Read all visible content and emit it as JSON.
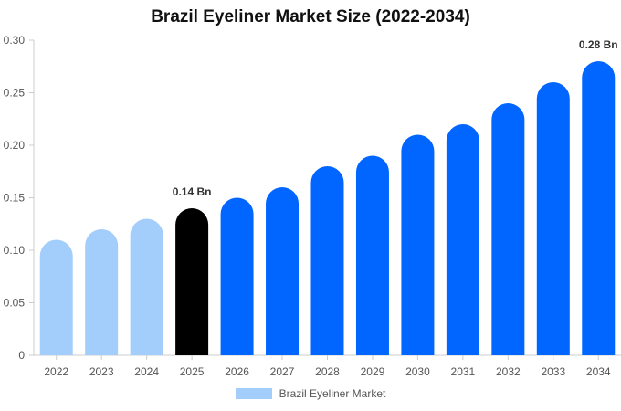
{
  "chart_data": {
    "type": "bar",
    "title": "Brazil Eyeliner Market Size (2022-2034)",
    "categories": [
      "2022",
      "2023",
      "2024",
      "2025",
      "2026",
      "2027",
      "2028",
      "2029",
      "2030",
      "2031",
      "2032",
      "2033",
      "2034"
    ],
    "series": [
      {
        "name": "Brazil Eyeliner Market",
        "values": [
          0.11,
          0.12,
          0.13,
          0.14,
          0.15,
          0.16,
          0.18,
          0.19,
          0.21,
          0.22,
          0.24,
          0.26,
          0.28
        ]
      }
    ],
    "ylim": [
      0,
      0.3
    ],
    "yticks": [
      "0",
      "0.05",
      "0.10",
      "0.15",
      "0.20",
      "0.25",
      "0.30"
    ],
    "ytick_values": [
      0,
      0.05,
      0.1,
      0.15,
      0.2,
      0.25,
      0.3
    ],
    "data_labels": [
      {
        "index": 3,
        "text": "0.14 Bn"
      },
      {
        "index": 12,
        "text": "0.28 Bn"
      }
    ],
    "bar_colors": [
      "#a3cdfb",
      "#a3cdfb",
      "#a3cdfb",
      "#000000",
      "#0066ff",
      "#0066ff",
      "#0066ff",
      "#0066ff",
      "#0066ff",
      "#0066ff",
      "#0066ff",
      "#0066ff",
      "#0066ff"
    ],
    "legend": {
      "label": "Brazil Eyeliner Market",
      "color": "#a3cdfb",
      "position": "bottom"
    },
    "grid": false,
    "xlabel": "",
    "ylabel": ""
  }
}
